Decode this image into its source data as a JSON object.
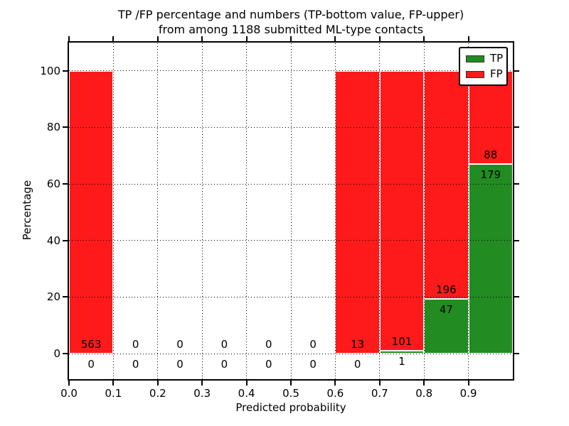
{
  "figure": {
    "title_line1": "TP /FP percentage and numbers (TP-bottom value, FP-upper)",
    "title_line2": "from among 1188 submitted ML-type contacts"
  },
  "axes": {
    "xlabel": "Predicted probability",
    "ylabel": "Percentage",
    "x_tick_labels": [
      "0.0",
      "0.1",
      "0.2",
      "0.3",
      "0.4",
      "0.5",
      "0.6",
      "0.7",
      "0.8",
      "0.9"
    ],
    "x_tick_values": [
      0.0,
      0.1,
      0.2,
      0.3,
      0.4,
      0.5,
      0.6,
      0.7,
      0.8,
      0.9
    ],
    "y_tick_labels": [
      "0",
      "20",
      "40",
      "60",
      "80",
      "100"
    ],
    "y_tick_values": [
      0,
      20,
      40,
      60,
      80,
      100
    ]
  },
  "legend": {
    "items": [
      {
        "label": "TP",
        "color": "#228b22"
      },
      {
        "label": "FP",
        "color": "#fe1a1a"
      }
    ]
  },
  "chart_data": {
    "type": "bar",
    "stacked": true,
    "title": "TP /FP percentage and numbers (TP-bottom value, FP-upper) from among 1188 submitted ML-type contacts",
    "xlabel": "Predicted probability",
    "ylabel": "Percentage",
    "total_contacts": 1188,
    "bin_edges": [
      0.0,
      0.1,
      0.2,
      0.3,
      0.4,
      0.5,
      0.6,
      0.7,
      0.8,
      0.9,
      1.0
    ],
    "categories": [
      "0.0-0.1",
      "0.1-0.2",
      "0.2-0.3",
      "0.3-0.4",
      "0.4-0.5",
      "0.5-0.6",
      "0.6-0.7",
      "0.7-0.8",
      "0.8-0.9",
      "0.9-1.0"
    ],
    "series": [
      {
        "name": "TP",
        "color": "#228b22",
        "counts": [
          0,
          0,
          0,
          0,
          0,
          0,
          0,
          1,
          47,
          179
        ],
        "percent": [
          0,
          0,
          0,
          0,
          0,
          0,
          0,
          0.98,
          19.34,
          67.04
        ]
      },
      {
        "name": "FP",
        "color": "#fe1a1a",
        "counts": [
          563,
          0,
          0,
          0,
          0,
          0,
          13,
          101,
          196,
          88
        ],
        "percent": [
          100,
          0,
          0,
          0,
          0,
          0,
          100,
          99.02,
          80.66,
          32.96
        ]
      }
    ],
    "xlim": [
      0.0,
      1.0
    ],
    "ylim": [
      -9,
      110
    ],
    "grid": "dotted",
    "legend_position": "upper right"
  }
}
